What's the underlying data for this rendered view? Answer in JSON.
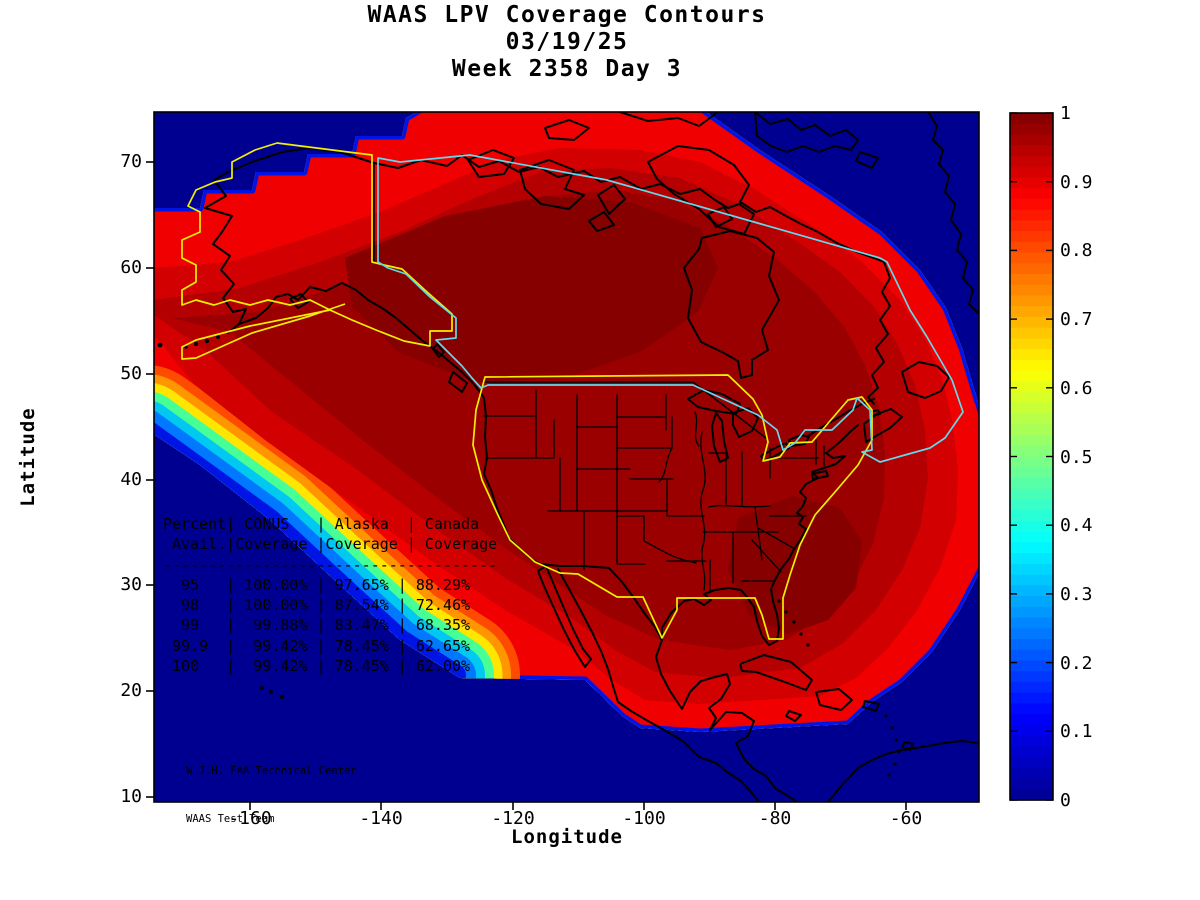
{
  "title": {
    "line1": "WAAS LPV Coverage Contours",
    "line2": "03/19/25",
    "line3": "Week 2358 Day 3"
  },
  "axes": {
    "x_label": "Longitude",
    "y_label": "Latitude",
    "x_ticks": [
      "-160",
      "-140",
      "-120",
      "-100",
      "-80",
      "-60"
    ],
    "y_ticks": [
      "70",
      "60",
      "50",
      "40",
      "30",
      "20",
      "10"
    ]
  },
  "colorbar": {
    "tick_labels": [
      "1",
      "0.9",
      "0.8",
      "0.7",
      "0.6",
      "0.5",
      "0.4",
      "0.3",
      "0.2",
      "0.1",
      "0"
    ],
    "min": 0,
    "max": 1,
    "colormap": "jet",
    "stops": [
      [
        0,
        "#000090"
      ],
      [
        0.125,
        "#0000FF"
      ],
      [
        0.375,
        "#00FFFF"
      ],
      [
        0.625,
        "#FFFF00"
      ],
      [
        0.875,
        "#FF0000"
      ],
      [
        1,
        "#800000"
      ]
    ]
  },
  "overlay_table": {
    "lines": [
      "Percent| CONUS   | Alaska  | Canada",
      " Avail.|Coverage |Coverage | Coverage",
      "-------------------------------------",
      "  95   | 100.00% | 97.65% | 88.29%",
      "  98   | 100.00% | 87.54% | 72.46%",
      "  99   |  99.88% | 83.47% | 68.35%",
      " 99.9  |  99.42% | 78.45% | 62.65%",
      " 100   |  99.42% | 78.45% | 62.00%"
    ]
  },
  "credit": {
    "line1": "W.J.H. FAA Technical Center",
    "line2": "WAAS Test Team"
  },
  "map_colors": {
    "background_sea": "#000090",
    "core_dark_red": "#9A0000",
    "darkest_patch": "#860000",
    "bright_red": "#F00000",
    "conus_alaska_outline": "#F0F000",
    "canada_outline": "#63D8EC",
    "coastline": "#000000"
  },
  "chart_data": {
    "type": "heatmap",
    "title": "WAAS LPV Coverage Contours",
    "subtitle": [
      "03/19/25",
      "Week 2358 Day 3"
    ],
    "xlabel": "Longitude",
    "ylabel": "Latitude",
    "xlim": [
      -175,
      -49
    ],
    "ylim": [
      9.5,
      75
    ],
    "x_ticks": [
      -160,
      -140,
      -120,
      -100,
      -80,
      -60
    ],
    "y_ticks": [
      10,
      20,
      30,
      40,
      50,
      60,
      70
    ],
    "colorbar": {
      "min": 0,
      "max": 1,
      "tick_step": 0.1,
      "colormap": "jet"
    },
    "description": "Filled contour map of WAAS LPV coverage probability (0-1) over North America; dark red core near 1.0 covers CONUS, Alaska and most of Canada, falling off through jet-colormap rainbow fringes to 0 (dark blue) over oceans; CONUS and Alaska coverage regions outlined in yellow, Canada region outlined in cyan",
    "coverage_table": {
      "columns": [
        "Percent Avail.",
        "CONUS Coverage",
        "Alaska Coverage",
        "Canada Coverage"
      ],
      "rows": [
        [
          "95",
          "100.00%",
          "97.65%",
          "88.29%"
        ],
        [
          "98",
          "100.00%",
          "87.54%",
          "72.46%"
        ],
        [
          "99",
          "99.88%",
          "83.47%",
          "68.35%"
        ],
        [
          "99.9",
          "99.42%",
          "78.45%",
          "62.65%"
        ],
        [
          "100",
          "99.42%",
          "78.45%",
          "62.00%"
        ]
      ]
    },
    "annotations": [
      "W.J.H. FAA Technical Center",
      "WAAS Test Team"
    ]
  }
}
